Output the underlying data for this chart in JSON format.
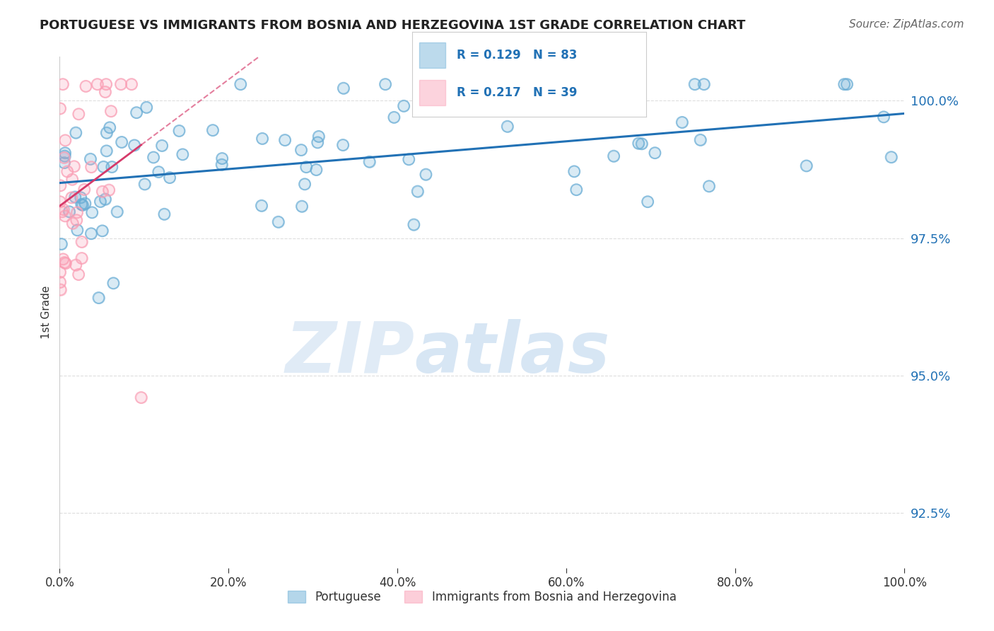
{
  "title": "PORTUGUESE VS IMMIGRANTS FROM BOSNIA AND HERZEGOVINA 1ST GRADE CORRELATION CHART",
  "source": "Source: ZipAtlas.com",
  "ylabel": "1st Grade",
  "legend_label_blue": "Portuguese",
  "legend_label_pink": "Immigrants from Bosnia and Herzegovina",
  "R_blue": 0.129,
  "N_blue": 83,
  "R_pink": 0.217,
  "N_pink": 39,
  "blue_color": "#6baed6",
  "pink_color": "#fa9fb5",
  "blue_line_color": "#2171b5",
  "pink_line_color": "#d63a6a",
  "x_min": 0.0,
  "x_max": 100.0,
  "y_min": 91.5,
  "y_max": 100.8,
  "yticks": [
    92.5,
    95.0,
    97.5,
    100.0
  ],
  "xticks": [
    0.0,
    20.0,
    40.0,
    60.0,
    80.0,
    100.0
  ],
  "xtick_labels": [
    "0.0%",
    "20.0%",
    "40.0%",
    "60.0%",
    "80.0%",
    "100.0%"
  ],
  "ytick_labels": [
    "92.5%",
    "95.0%",
    "97.5%",
    "100.0%"
  ],
  "watermark_zip": "ZIP",
  "watermark_atlas": "atlas",
  "background_color": "#ffffff",
  "grid_color": "#dddddd"
}
